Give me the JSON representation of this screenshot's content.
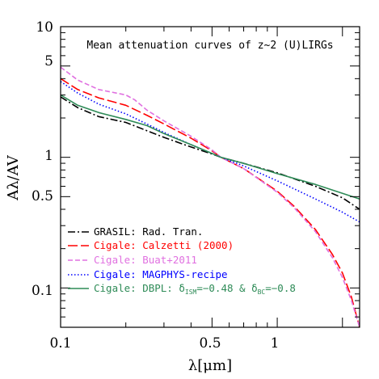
{
  "chart_data": {
    "type": "line",
    "title": "Mean attenuation curves of z~2 (U)LIRGs",
    "xlabel": "λ[μm]",
    "ylabel": "Aλ/AV",
    "xscale": "log",
    "yscale": "log",
    "xlim": [
      0.1,
      2.4
    ],
    "ylim": [
      0.05,
      10
    ],
    "x_tick_labels": [
      "0.1",
      "0.5",
      "1"
    ],
    "y_tick_labels": [
      "0.1",
      "0.5",
      "1",
      "5",
      "10"
    ],
    "grid": false,
    "legend_position": "bottom-left",
    "series": [
      {
        "name": "GRASIL: Rad. Tran.",
        "color": "#000000",
        "style": "dashdot",
        "points": [
          [
            0.1,
            2.9
          ],
          [
            0.12,
            2.4
          ],
          [
            0.15,
            2.05
          ],
          [
            0.2,
            1.85
          ],
          [
            0.25,
            1.6
          ],
          [
            0.3,
            1.42
          ],
          [
            0.4,
            1.2
          ],
          [
            0.5,
            1.06
          ],
          [
            0.55,
            1.0
          ],
          [
            0.7,
            0.9
          ],
          [
            1.0,
            0.76
          ],
          [
            1.5,
            0.6
          ],
          [
            2.0,
            0.49
          ],
          [
            2.4,
            0.4
          ]
        ]
      },
      {
        "name": "Cigale: Calzetti (2000)",
        "color": "#ff0000",
        "style": "longdash",
        "points": [
          [
            0.1,
            4.0
          ],
          [
            0.12,
            3.3
          ],
          [
            0.15,
            2.85
          ],
          [
            0.2,
            2.5
          ],
          [
            0.25,
            2.1
          ],
          [
            0.3,
            1.8
          ],
          [
            0.4,
            1.4
          ],
          [
            0.5,
            1.12
          ],
          [
            0.55,
            1.0
          ],
          [
            0.7,
            0.82
          ],
          [
            1.0,
            0.55
          ],
          [
            1.2,
            0.42
          ],
          [
            1.5,
            0.28
          ],
          [
            1.8,
            0.18
          ],
          [
            2.0,
            0.13
          ],
          [
            2.2,
            0.085
          ],
          [
            2.4,
            0.05
          ]
        ]
      },
      {
        "name": "Cigale: Buat+2011",
        "color": "#e070e0",
        "style": "dashed",
        "points": [
          [
            0.1,
            4.9
          ],
          [
            0.12,
            3.9
          ],
          [
            0.15,
            3.3
          ],
          [
            0.2,
            3.0
          ],
          [
            0.22,
            2.75
          ],
          [
            0.25,
            2.3
          ],
          [
            0.3,
            1.9
          ],
          [
            0.4,
            1.45
          ],
          [
            0.5,
            1.14
          ],
          [
            0.55,
            1.0
          ],
          [
            0.7,
            0.82
          ],
          [
            1.0,
            0.54
          ],
          [
            1.2,
            0.41
          ],
          [
            1.5,
            0.27
          ],
          [
            1.8,
            0.17
          ],
          [
            2.0,
            0.12
          ],
          [
            2.2,
            0.08
          ],
          [
            2.4,
            0.05
          ]
        ]
      },
      {
        "name": "Cigale: MAGPHYS-recipe",
        "color": "#0000ff",
        "style": "dotted",
        "points": [
          [
            0.1,
            3.8
          ],
          [
            0.12,
            3.1
          ],
          [
            0.15,
            2.55
          ],
          [
            0.2,
            2.15
          ],
          [
            0.25,
            1.8
          ],
          [
            0.3,
            1.55
          ],
          [
            0.4,
            1.25
          ],
          [
            0.5,
            1.07
          ],
          [
            0.55,
            1.0
          ],
          [
            0.7,
            0.86
          ],
          [
            1.0,
            0.66
          ],
          [
            1.5,
            0.48
          ],
          [
            2.0,
            0.38
          ],
          [
            2.4,
            0.32
          ]
        ]
      },
      {
        "name": "Cigale: DBPL: δISM=−0.48 & δBC=−0.8",
        "color": "#2e8b57",
        "style": "solid",
        "points": [
          [
            0.1,
            3.0
          ],
          [
            0.12,
            2.5
          ],
          [
            0.15,
            2.2
          ],
          [
            0.2,
            1.95
          ],
          [
            0.25,
            1.75
          ],
          [
            0.3,
            1.52
          ],
          [
            0.4,
            1.25
          ],
          [
            0.5,
            1.07
          ],
          [
            0.55,
            1.0
          ],
          [
            0.7,
            0.9
          ],
          [
            1.0,
            0.75
          ],
          [
            1.5,
            0.62
          ],
          [
            2.0,
            0.53
          ],
          [
            2.4,
            0.48
          ]
        ]
      }
    ],
    "legend": [
      {
        "text": "GRASIL: Rad. Tran.",
        "color": "#000000"
      },
      {
        "text": "Cigale: Calzetti (2000)",
        "color": "#ff0000"
      },
      {
        "text": "Cigale: Buat+2011",
        "color": "#e070e0"
      },
      {
        "text": "Cigale: MAGPHYS-recipe",
        "color": "#0000ff"
      },
      {
        "text_before": "Cigale: DBPL: δ",
        "sub1": "ISM",
        "text_middle": "=−0.48 & δ",
        "sub2": "BC",
        "text_after": "=−0.8",
        "color": "#2e8b57"
      }
    ]
  }
}
